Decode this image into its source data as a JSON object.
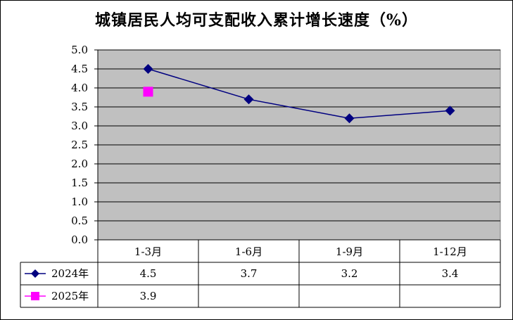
{
  "chart_data": {
    "type": "line",
    "title": "城镇居民人均可支配收入累计增长速度（%）",
    "categories": [
      "1-3月",
      "1-6月",
      "1-9月",
      "1-12月"
    ],
    "ylim": [
      0.0,
      5.0
    ],
    "y_ticks": [
      "0.0",
      "0.5",
      "1.0",
      "1.5",
      "2.0",
      "2.5",
      "3.0",
      "3.5",
      "4.0",
      "4.5",
      "5.0"
    ],
    "grid": true,
    "legend": "data-table-left",
    "series": [
      {
        "name": "2024年",
        "values": [
          4.5,
          3.7,
          3.2,
          3.4
        ],
        "labels": [
          "4.5",
          "3.7",
          "3.2",
          "3.4"
        ],
        "color": "#000080",
        "marker": "diamond"
      },
      {
        "name": "2025年",
        "values": [
          3.9,
          null,
          null,
          null
        ],
        "labels": [
          "3.9",
          "",
          "",
          ""
        ],
        "color": "#FF00FF",
        "marker": "square"
      }
    ],
    "plot_background": "#C0C0C0"
  }
}
